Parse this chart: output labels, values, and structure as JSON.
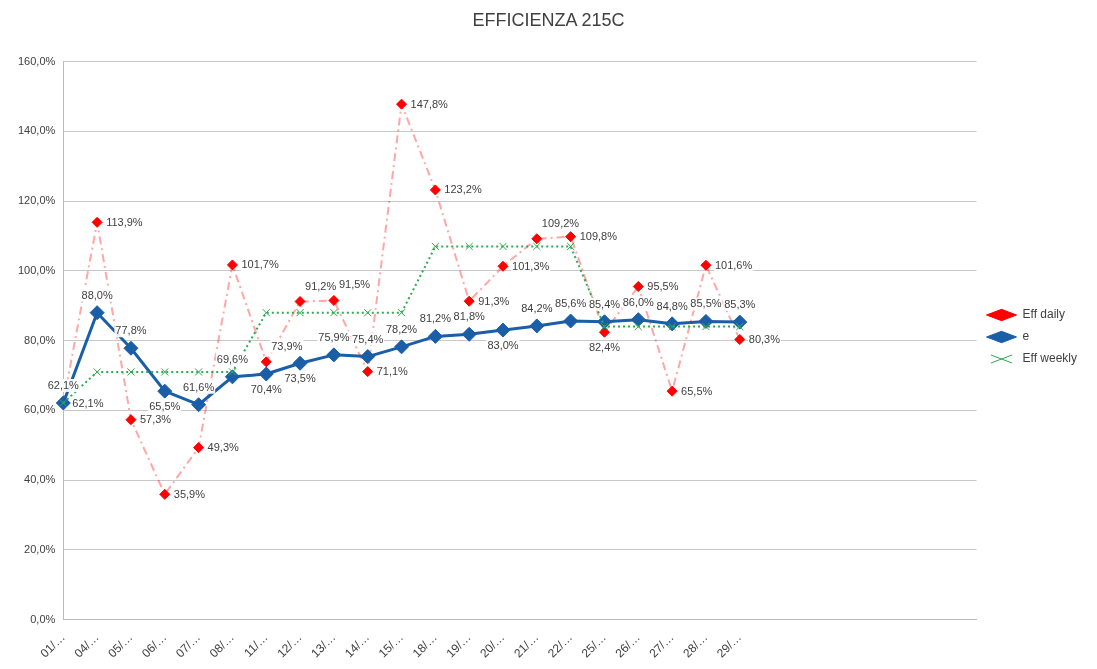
{
  "chart_data": {
    "type": "line",
    "title": "EFFICIENZA 215C",
    "categories": [
      "01/…",
      "04/…",
      "05/…",
      "06/…",
      "07/…",
      "08/…",
      "11/…",
      "12/…",
      "13/…",
      "14/…",
      "15/…",
      "18/…",
      "19/…",
      "20/…",
      "21/…",
      "22/…",
      "25/…",
      "26/…",
      "27/…",
      "28/…",
      "29/…",
      null,
      null,
      null,
      null,
      null,
      null,
      null
    ],
    "series": [
      {
        "name": "Eff daily",
        "color": "#ff0000",
        "marker": "diamond",
        "line_style": "dashed",
        "values": [
          62.1,
          113.9,
          57.3,
          35.9,
          49.3,
          101.7,
          73.9,
          91.2,
          91.5,
          71.1,
          147.8,
          123.2,
          91.3,
          101.3,
          109.2,
          109.8,
          82.4,
          95.5,
          65.5,
          101.6,
          80.3,
          null,
          null,
          null,
          null,
          null,
          null,
          null
        ],
        "value_labels": [
          "62,1%",
          "113,9%",
          "57,3%",
          "35,9%",
          "49,3%",
          "101,7%",
          "73,9%",
          "91,2%",
          "91,5%",
          "71,1%",
          "147,8%",
          "123,2%",
          "91,3%",
          "101,3%",
          "109,2%",
          "109,8%",
          "82,4%",
          "95,5%",
          "65,5%",
          "101,6%",
          "80,3%",
          null,
          null,
          null,
          null,
          null,
          null,
          null
        ]
      },
      {
        "name": "e",
        "color": "#1a5ea8",
        "marker": "diamond",
        "line_style": "solid",
        "values": [
          62.1,
          88.0,
          77.8,
          65.5,
          61.6,
          69.6,
          70.4,
          73.5,
          75.9,
          75.4,
          78.2,
          81.2,
          81.8,
          83.0,
          84.2,
          85.6,
          85.4,
          86.0,
          84.8,
          85.5,
          85.3,
          null,
          null,
          null,
          null,
          null,
          null,
          null
        ],
        "value_labels": [
          "62,1%",
          "88,0%",
          "77,8%",
          "65,5%",
          "61,6%",
          "69,6%",
          "70,4%",
          "73,5%",
          "75,9%",
          "75,4%",
          "78,2%",
          "81,2%",
          "81,8%",
          "83,0%",
          "84,2%",
          "85,6%",
          "85,4%",
          "86,0%",
          "84,8%",
          "85,5%",
          "85,3%",
          null,
          null,
          null,
          null,
          null,
          null,
          null
        ]
      },
      {
        "name": "Eff weekly",
        "color": "#2eaa50",
        "marker": "cross",
        "line_style": "dotted",
        "values": [
          62.1,
          71,
          71,
          71,
          71,
          71,
          88,
          88,
          88,
          88,
          88,
          107,
          107,
          107,
          107,
          107,
          84,
          84,
          84,
          84,
          84,
          null,
          null,
          null,
          null,
          null,
          null,
          null
        ]
      }
    ],
    "ylim": [
      0,
      160
    ],
    "yticks": [
      {
        "value": 0,
        "label": "0,0%"
      },
      {
        "value": 20,
        "label": "20,0%"
      },
      {
        "value": 40,
        "label": "40,0%"
      },
      {
        "value": 60,
        "label": "60,0%"
      },
      {
        "value": 80,
        "label": "80,0%"
      },
      {
        "value": 100,
        "label": "100,0%"
      },
      {
        "value": 120,
        "label": "120,0%"
      },
      {
        "value": 140,
        "label": "140,0%"
      },
      {
        "value": 160,
        "label": "160,0%"
      }
    ],
    "grid": "y",
    "legend": "right"
  }
}
